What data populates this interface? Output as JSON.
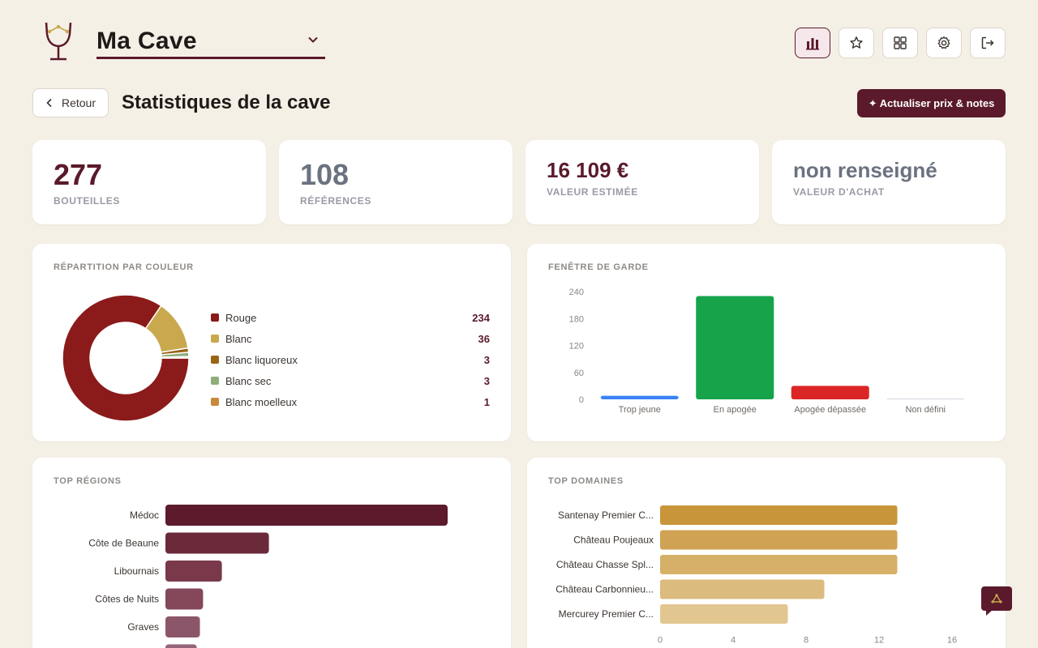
{
  "header": {
    "cellar_name": "Ma Cave",
    "icons": [
      "wine-glass-logo",
      "chevron-down-icon",
      "stats-icon",
      "star-icon",
      "grid-icon",
      "gear-icon",
      "logout-icon"
    ]
  },
  "toolbar": {
    "back_label": "Retour",
    "page_title": "Statistiques de la cave",
    "refresh_label": "✦ Actualiser prix & notes"
  },
  "stats": [
    {
      "value": "277",
      "label": "BOUTEILLES"
    },
    {
      "value": "108",
      "label": "RÉFÉRENCES"
    },
    {
      "value": "16 109 €",
      "label": "VALEUR ESTIMÉE"
    },
    {
      "value": "non renseigné",
      "label": "VALEUR D'ACHAT"
    }
  ],
  "colors": {
    "accent": "#5a1a2b",
    "background": "#f5f0e6"
  },
  "color_panel": {
    "title": "RÉPARTITION PAR COULEUR",
    "items": [
      {
        "label": "Rouge",
        "count": "234",
        "color": "#8b1a1a"
      },
      {
        "label": "Blanc",
        "count": "36",
        "color": "#c9a84e"
      },
      {
        "label": "Blanc liquoreux",
        "count": "3",
        "color": "#9a6416"
      },
      {
        "label": "Blanc sec",
        "count": "3",
        "color": "#8fae7a"
      },
      {
        "label": "Blanc moelleux",
        "count": "1",
        "color": "#c9893a"
      }
    ]
  },
  "garde_panel": {
    "title": "FENÊTRE DE GARDE"
  },
  "regions_panel": {
    "title": "TOP RÉGIONS"
  },
  "domaines_panel": {
    "title": "TOP DOMAINES"
  },
  "chart_data": [
    {
      "type": "pie",
      "categories": [
        "Rouge",
        "Blanc",
        "Blanc liquoreux",
        "Blanc sec",
        "Blanc moelleux"
      ],
      "values": [
        234,
        36,
        3,
        3,
        1
      ],
      "colors": [
        "#8b1a1a",
        "#c9a84e",
        "#9a6416",
        "#8fae7a",
        "#c9893a"
      ],
      "title": "RÉPARTITION PAR COULEUR"
    },
    {
      "type": "bar",
      "categories": [
        "Trop jeune",
        "En apogée",
        "Apogée dépassée",
        "Non défini"
      ],
      "values": [
        8,
        230,
        30,
        0
      ],
      "colors": [
        "#3b82f6",
        "#16a34a",
        "#dc2626",
        "#d1d5db"
      ],
      "yticks": [
        0,
        60,
        120,
        180,
        240
      ],
      "ylim": [
        0,
        240
      ],
      "title": "FENÊTRE DE GARDE"
    },
    {
      "type": "bar",
      "orientation": "horizontal",
      "categories": [
        "Médoc",
        "Côte de Beaune",
        "Libournais",
        "Côtes de Nuits",
        "Graves",
        ""
      ],
      "values": [
        90,
        33,
        18,
        12,
        11,
        10
      ],
      "colors": [
        "#5c1a2c",
        "#6a2a3a",
        "#79394a",
        "#84485a",
        "#8c566a",
        "#96647a"
      ],
      "title": "TOP RÉGIONS"
    },
    {
      "type": "bar",
      "orientation": "horizontal",
      "categories": [
        "Santenay Premier C...",
        "Château Poujeaux",
        "Château Chasse Spl...",
        "Château Carbonnieu...",
        "Mercurey Premier C..."
      ],
      "values": [
        13,
        13,
        13,
        9,
        7
      ],
      "colors": [
        "#c8953a",
        "#d0a354",
        "#d6b068",
        "#dcbb7e",
        "#e2c690"
      ],
      "xticks": [
        0,
        4,
        8,
        12,
        16
      ],
      "xlim": [
        0,
        16
      ],
      "title": "TOP DOMAINES"
    }
  ]
}
